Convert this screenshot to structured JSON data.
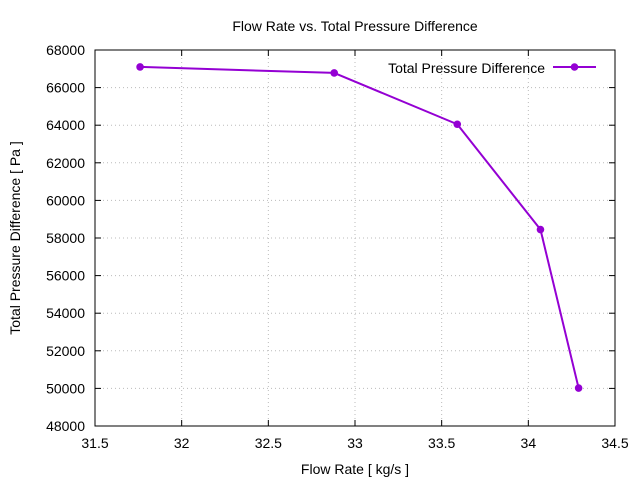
{
  "chart_data": {
    "type": "line",
    "title": "Flow Rate vs. Total Pressure Difference",
    "xlabel": "Flow Rate [ kg/s ]",
    "ylabel": "Total Pressure Difference [ Pa ]",
    "xlim": [
      31.5,
      34.5
    ],
    "ylim": [
      48000,
      68000
    ],
    "xticks": [
      "31.5",
      "32",
      "32.5",
      "33",
      "33.5",
      "34",
      "34.5"
    ],
    "xtick_values": [
      31.5,
      32,
      32.5,
      33,
      33.5,
      34,
      34.5
    ],
    "yticks": [
      "48000",
      "50000",
      "52000",
      "54000",
      "56000",
      "58000",
      "60000",
      "62000",
      "64000",
      "66000",
      "68000"
    ],
    "ytick_values": [
      48000,
      50000,
      52000,
      54000,
      56000,
      58000,
      60000,
      62000,
      64000,
      66000,
      68000
    ],
    "grid": true,
    "legend_position": "top-right",
    "series": [
      {
        "name": "Total Pressure Difference",
        "color": "#9400d3",
        "marker": "circle",
        "points": [
          {
            "x": 31.76,
            "y": 67100
          },
          {
            "x": 32.88,
            "y": 66780
          },
          {
            "x": 33.59,
            "y": 64050
          },
          {
            "x": 34.07,
            "y": 58450
          },
          {
            "x": 34.29,
            "y": 50020
          }
        ]
      }
    ]
  }
}
